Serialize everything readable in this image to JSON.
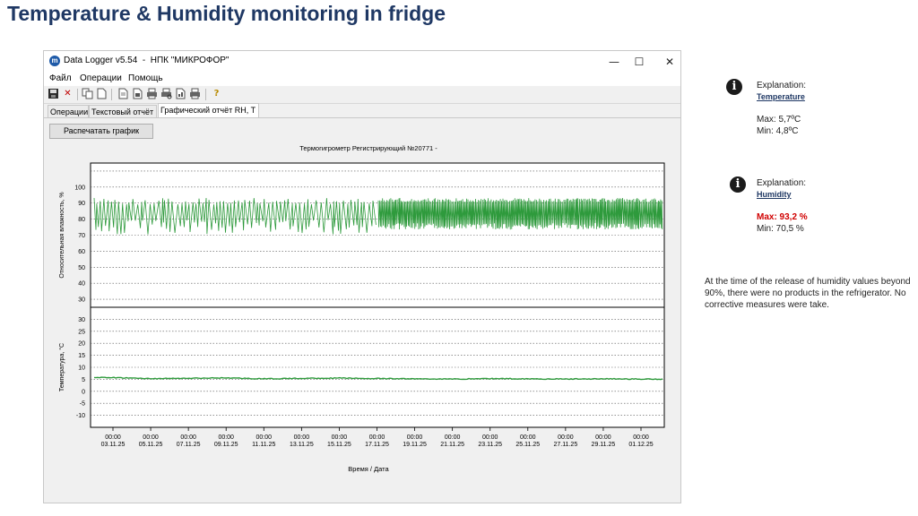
{
  "slide": {
    "title": "Temperature & Humidity monitoring in fridge"
  },
  "window": {
    "title": "Data Logger v5.54  -  НПК \"МИКРОФОР\"",
    "buttons": {
      "minimize": "—",
      "maximize": "☐",
      "close": "✕"
    }
  },
  "menu": [
    "Файл",
    "Операции",
    "Помощь"
  ],
  "toolbar": {
    "icons": [
      "save-icon",
      "delete-icon",
      "copy-icon",
      "new-document-icon",
      "document-icon",
      "open-document-icon",
      "print-icon",
      "print-preview-icon",
      "report-icon",
      "print-report-icon",
      "help-icon"
    ]
  },
  "tabs": [
    "Операции",
    "Текстовый отчёт",
    "Графический отчёт RH, T"
  ],
  "print_button": "Распечатать график",
  "chart_data": {
    "type": "line",
    "title": "Термогигрометр Регистрирующий №20771 -",
    "xlabel": "Время / Дата",
    "x_ticks": [
      "03.11.25",
      "05.11.25",
      "07.11.25",
      "09.11.25",
      "11.11.25",
      "13.11.25",
      "15.11.25",
      "17.11.25",
      "19.11.25",
      "21.11.25",
      "23.11.25",
      "25.11.25",
      "27.11.25",
      "29.11.25",
      "01.12.25"
    ],
    "x_tick_time": "00:00",
    "panels": [
      {
        "ylabel": "Относительная влажность, %",
        "yticks": [
          100,
          90,
          80,
          70,
          60,
          50,
          40,
          30
        ],
        "ylim": [
          25,
          115
        ],
        "series": [
          {
            "color": "#2e9a3c",
            "min": 70.5,
            "max": 93.2,
            "change_date": "18.11.25"
          }
        ]
      },
      {
        "ylabel": "Температура, °С",
        "yticks": [
          30,
          25,
          20,
          15,
          10,
          5,
          0,
          -5,
          -10
        ],
        "ylim": [
          -15,
          35
        ],
        "series": [
          {
            "color": "#2e9a3c",
            "values": [
              5.7,
              5.3,
              5.4,
              5.6,
              5.2,
              5.4,
              5.5,
              5.3,
              5.2,
              5.1,
              5.3,
              5.2,
              5.1,
              5.2,
              5.1
            ],
            "min": 4.8,
            "max": 5.7
          }
        ]
      }
    ],
    "grid": true
  },
  "temperature": {
    "explanation": "Explanation:",
    "subtitle": "Temperature",
    "max": "Max: 5,7ºC",
    "min": "Min: 4,8ºC"
  },
  "humidity": {
    "explanation": "Explanation:",
    "subtitle": "Humidity",
    "max": "Max: 93,2 %",
    "min": "Min: 70,5 %"
  },
  "note": "At the time of the release of humidity values beyond 90%, there were no products in the refrigerator. No corrective measures were take.",
  "colors": {
    "title": "#1f3864",
    "series": "#2e9a3c",
    "max_alert": "#d00000"
  }
}
